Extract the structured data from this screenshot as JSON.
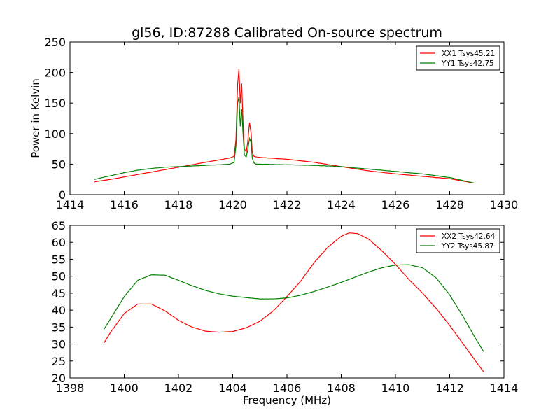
{
  "figure": {
    "title": "gl56, ID:87288 Calibrated On-source spectrum"
  },
  "chart_data": [
    {
      "type": "line",
      "title": "gl56, ID:87288 Calibrated On-source spectrum",
      "xlabel": "",
      "ylabel": "Power in Kelvin",
      "xlim": [
        1414,
        1430
      ],
      "ylim": [
        0,
        250
      ],
      "xticks": [
        "1414",
        "1416",
        "1418",
        "1420",
        "1422",
        "1424",
        "1426",
        "1428",
        "1430"
      ],
      "yticks": [
        "0",
        "50",
        "100",
        "150",
        "200",
        "250"
      ],
      "grid": false,
      "legend_position": "top-right",
      "series": [
        {
          "name": "XX1 Tsys45.21",
          "color": "#ff0000",
          "x": [
            1414.9,
            1415.5,
            1416,
            1416.5,
            1417,
            1417.5,
            1418,
            1418.5,
            1419,
            1419.5,
            1419.9,
            1420.05,
            1420.12,
            1420.18,
            1420.23,
            1420.28,
            1420.33,
            1420.38,
            1420.43,
            1420.5,
            1420.55,
            1420.62,
            1420.68,
            1420.72,
            1420.78,
            1420.85,
            1421,
            1422,
            1423,
            1424,
            1425,
            1426,
            1427,
            1428,
            1428.9
          ],
          "y": [
            21,
            25,
            29,
            33,
            37,
            41,
            45,
            49,
            53,
            57,
            60,
            63,
            90,
            180,
            206,
            150,
            182,
            120,
            75,
            70,
            85,
            118,
            100,
            70,
            63,
            62,
            61,
            58,
            53,
            46,
            39,
            34,
            30,
            26,
            19
          ]
        },
        {
          "name": "YY1 Tsys42.75",
          "color": "#008000",
          "x": [
            1414.9,
            1415.5,
            1416,
            1416.5,
            1417,
            1417.5,
            1418,
            1418.5,
            1419,
            1419.5,
            1419.9,
            1420.05,
            1420.12,
            1420.18,
            1420.23,
            1420.28,
            1420.33,
            1420.38,
            1420.43,
            1420.5,
            1420.55,
            1420.62,
            1420.68,
            1420.72,
            1420.78,
            1420.85,
            1421,
            1422,
            1423,
            1424,
            1425,
            1426,
            1427,
            1428,
            1428.9
          ],
          "y": [
            25,
            31,
            36,
            40,
            43,
            45,
            46,
            47,
            48,
            49,
            50,
            53,
            80,
            150,
            160,
            112,
            140,
            100,
            65,
            62,
            72,
            92,
            85,
            60,
            52,
            50,
            50,
            49,
            48,
            46,
            42,
            38,
            34,
            28,
            19
          ]
        }
      ]
    },
    {
      "type": "line",
      "title": "",
      "xlabel": "Frequency (MHz)",
      "ylabel": "",
      "xlim": [
        1398,
        1414
      ],
      "ylim": [
        20,
        65
      ],
      "xticks": [
        "1398",
        "1400",
        "1402",
        "1404",
        "1406",
        "1408",
        "1410",
        "1412",
        "1414"
      ],
      "yticks": [
        "20",
        "25",
        "30",
        "35",
        "40",
        "45",
        "50",
        "55",
        "60",
        "65"
      ],
      "grid": false,
      "legend_position": "top-right",
      "series": [
        {
          "name": "XX2 Tsys42.64",
          "color": "#ff0000",
          "x": [
            1399.25,
            1399.5,
            1400,
            1400.5,
            1401,
            1401.5,
            1402,
            1402.5,
            1403,
            1403.5,
            1404,
            1404.5,
            1405,
            1405.5,
            1406,
            1406.5,
            1407,
            1407.5,
            1408,
            1408.3,
            1408.6,
            1409,
            1409.5,
            1410,
            1410.5,
            1411,
            1411.5,
            1412,
            1412.5,
            1413,
            1413.25
          ],
          "y": [
            30.3,
            33.5,
            39,
            41.8,
            41.8,
            39.8,
            37,
            35,
            33.8,
            33.5,
            33.7,
            34.8,
            36.7,
            39.8,
            44,
            48.5,
            54,
            58.5,
            61.8,
            62.8,
            62.6,
            61,
            57.5,
            53.5,
            49,
            45,
            40.5,
            35.5,
            30,
            24.5,
            21.8
          ]
        },
        {
          "name": "YY2 Tsys45.87",
          "color": "#008000",
          "x": [
            1399.25,
            1399.5,
            1400,
            1400.5,
            1401,
            1401.5,
            1402,
            1402.5,
            1403,
            1403.5,
            1404,
            1404.5,
            1405,
            1405.5,
            1406,
            1406.5,
            1407,
            1407.5,
            1408,
            1408.5,
            1409,
            1409.5,
            1410,
            1410.5,
            1411,
            1411.5,
            1412,
            1412.5,
            1413,
            1413.25
          ],
          "y": [
            34.3,
            37.5,
            44,
            48.8,
            50.4,
            50.3,
            48.8,
            47.2,
            45.8,
            44.8,
            44.1,
            43.7,
            43.3,
            43.3,
            43.6,
            44.4,
            45.5,
            46.8,
            48.2,
            49.7,
            51.2,
            52.5,
            53.3,
            53.4,
            52.5,
            49.5,
            44.5,
            38,
            31,
            27.8
          ]
        }
      ]
    }
  ]
}
